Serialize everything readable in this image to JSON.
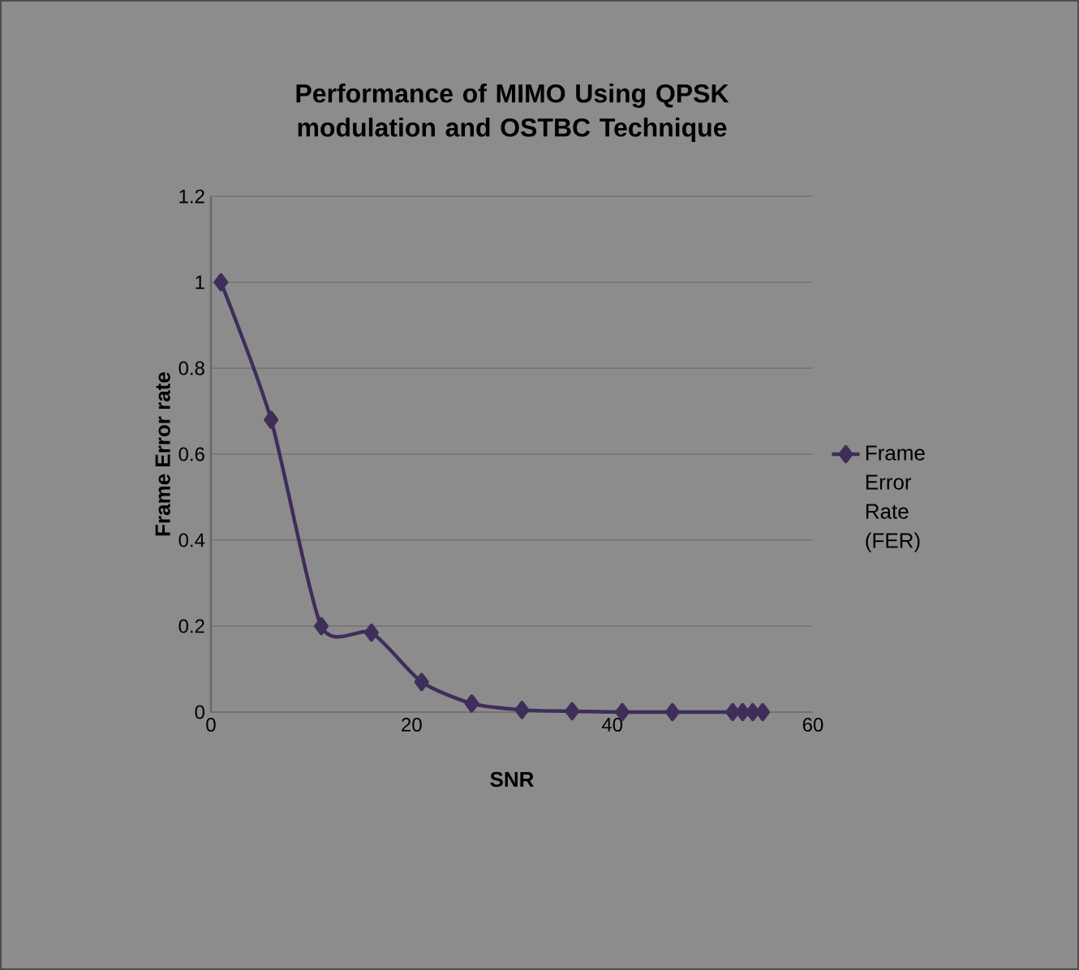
{
  "chart_data": {
    "type": "line",
    "title": "Performance of MIMO Using QPSK modulation and OSTBC Technique",
    "xlabel": "SNR",
    "ylabel": "Frame Error rate",
    "x": [
      1,
      6,
      11,
      16,
      21,
      26,
      31,
      36,
      41,
      46,
      52,
      53,
      54,
      55
    ],
    "series": [
      {
        "name": "Frame Error Rate (FER)",
        "color": "#3f2d5a",
        "values": [
          1,
          0.68,
          0.2,
          0.185,
          0.07,
          0.02,
          0.005,
          0.002,
          0,
          0,
          0,
          0,
          0,
          0
        ]
      }
    ],
    "xlim": [
      0,
      60
    ],
    "ylim": [
      0,
      1.2
    ],
    "xticks": [
      0,
      20,
      40,
      60
    ],
    "yticks": [
      0,
      0.2,
      0.4,
      0.6,
      0.8,
      1,
      1.2
    ],
    "grid": "y",
    "legend": "right",
    "marker": "diamond",
    "line_style": "solid"
  }
}
